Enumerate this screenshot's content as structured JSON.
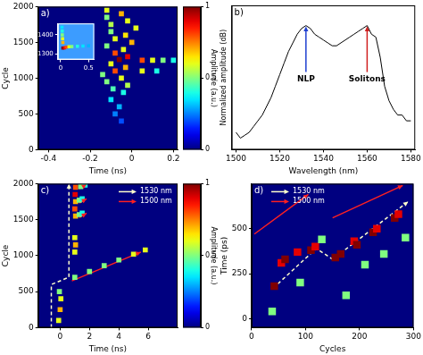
{
  "chart_data": [
    {
      "type": "heatmap",
      "panel": "a)",
      "x_label": "Time (ns)",
      "y_label": "Cycle",
      "xlim": [
        -0.45,
        0.22
      ],
      "xticks": [
        -0.4,
        -0.2,
        0,
        0.2
      ],
      "ylim": [
        0,
        2000
      ],
      "yticks": [
        0,
        500,
        1000,
        1500,
        2000
      ],
      "zlim": [
        0,
        1
      ],
      "colorbar": {
        "label": "Amplitude (a.u.)",
        "ticks": [
          0,
          0.5,
          1
        ]
      },
      "cells": [
        [
          -0.12,
          1950,
          0.6
        ],
        [
          -0.05,
          1900,
          0.7
        ],
        [
          -0.12,
          1850,
          0.5
        ],
        [
          -0.02,
          1800,
          0.6
        ],
        [
          -0.1,
          1750,
          0.55
        ],
        [
          0.02,
          1700,
          0.6
        ],
        [
          -0.1,
          1650,
          0.5
        ],
        [
          -0.03,
          1600,
          0.65
        ],
        [
          -0.08,
          1550,
          0.6
        ],
        [
          0.0,
          1500,
          0.7
        ],
        [
          -0.12,
          1450,
          0.5
        ],
        [
          -0.04,
          1400,
          0.6
        ],
        [
          -0.08,
          1350,
          0.8
        ],
        [
          -0.02,
          1300,
          0.9
        ],
        [
          -0.06,
          1260,
          1.0
        ],
        [
          0.05,
          1250,
          0.8
        ],
        [
          0.1,
          1250,
          0.6
        ],
        [
          0.15,
          1250,
          0.5
        ],
        [
          0.2,
          1250,
          0.4
        ],
        [
          -0.1,
          1200,
          0.6
        ],
        [
          -0.03,
          1150,
          0.7
        ],
        [
          -0.08,
          1100,
          0.8
        ],
        [
          0.05,
          1100,
          0.6
        ],
        [
          0.12,
          1100,
          0.4
        ],
        [
          -0.14,
          1050,
          0.5
        ],
        [
          -0.05,
          1000,
          0.6
        ],
        [
          -0.12,
          950,
          0.5
        ],
        [
          -0.02,
          900,
          0.55
        ],
        [
          -0.09,
          850,
          0.45
        ],
        [
          -0.04,
          800,
          0.4
        ],
        [
          -0.1,
          700,
          0.35
        ],
        [
          -0.06,
          600,
          0.3
        ],
        [
          -0.08,
          500,
          0.25
        ],
        [
          -0.05,
          400,
          0.2
        ]
      ],
      "inset": {
        "xlim": [
          -0.05,
          0.6
        ],
        "xticks": [
          0,
          0.5
        ],
        "ylim": [
          1270,
          1460
        ],
        "yticks": [
          1300,
          1400
        ],
        "cells": [
          [
            0.04,
            1330,
            1.0
          ],
          [
            0.07,
            1332,
            0.9
          ],
          [
            0.1,
            1335,
            0.8
          ],
          [
            0.15,
            1337,
            0.6
          ],
          [
            0.2,
            1338,
            0.5
          ],
          [
            0.3,
            1340,
            0.4
          ],
          [
            0.4,
            1341,
            0.35
          ],
          [
            0.5,
            1342,
            0.3
          ],
          [
            0.04,
            1360,
            0.7
          ],
          [
            0.035,
            1380,
            0.6
          ],
          [
            0.03,
            1400,
            0.5
          ],
          [
            0.028,
            1420,
            0.4
          ],
          [
            0.025,
            1440,
            0.35
          ]
        ]
      }
    },
    {
      "type": "line",
      "panel": "b)",
      "x_label": "Wavelength (nm)",
      "y_label": "Normalized amplitude (dB)",
      "xlim": [
        1498,
        1582
      ],
      "xticks": [
        1500,
        1520,
        1540,
        1560,
        1580
      ],
      "ylim": [
        -50,
        0
      ],
      "tick_labels": "x",
      "color": "#000000",
      "x": [
        1500,
        1502,
        1504,
        1506,
        1508,
        1510,
        1512,
        1514,
        1516,
        1518,
        1520,
        1522,
        1524,
        1526,
        1528,
        1530,
        1532,
        1534,
        1536,
        1538,
        1540,
        1542,
        1544,
        1546,
        1548,
        1550,
        1552,
        1554,
        1556,
        1558,
        1560,
        1562,
        1564,
        1566,
        1568,
        1570,
        1572,
        1574,
        1576,
        1578,
        1580
      ],
      "values": [
        -44,
        -46,
        -45,
        -44,
        -42,
        -40,
        -38,
        -35,
        -32,
        -28,
        -24,
        -20,
        -16,
        -13,
        -10,
        -8,
        -7,
        -8,
        -10,
        -11,
        -12,
        -13,
        -14,
        -14,
        -13,
        -12,
        -11,
        -10,
        -9,
        -8,
        -7,
        -10,
        -11,
        -18,
        -28,
        -33,
        -36,
        -38,
        -38,
        -40,
        -40
      ],
      "annotations": [
        {
          "text": "NLP",
          "x": 1532,
          "y": -7,
          "color": "#1f3fd0"
        },
        {
          "text": "Solitons",
          "x": 1560,
          "y": -7,
          "color": "#d01f1f"
        }
      ]
    },
    {
      "type": "heatmap",
      "panel": "c)",
      "x_label": "Time (ns)",
      "y_label": "Cycle",
      "xlim": [
        -1.5,
        8
      ],
      "xticks": [
        0,
        2,
        4,
        6
      ],
      "ylim": [
        0,
        2000
      ],
      "yticks": [
        0,
        500,
        1000,
        1500,
        2000
      ],
      "zlim": [
        0,
        1
      ],
      "colorbar": {
        "label": "Amplitude (a.u.)",
        "ticks": [
          0,
          0.5,
          1
        ]
      },
      "legend": "upper right",
      "cells": [
        [
          -0.1,
          100,
          0.6
        ],
        [
          0,
          250,
          0.7
        ],
        [
          0.05,
          400,
          0.6
        ],
        [
          -0.05,
          500,
          0.5
        ],
        [
          1,
          1050,
          0.6
        ],
        [
          1.05,
          1150,
          0.7
        ],
        [
          1,
          1250,
          0.6
        ],
        [
          1.05,
          1550,
          0.7
        ],
        [
          1,
          1650,
          0.8
        ],
        [
          1.05,
          1750,
          0.7
        ],
        [
          1.02,
          1850,
          0.9
        ],
        [
          1.05,
          1950,
          0.8
        ],
        [
          1.3,
          1570,
          0.5
        ],
        [
          1.5,
          1590,
          0.4
        ],
        [
          1.3,
          1770,
          0.5
        ],
        [
          1.5,
          1790,
          0.4
        ],
        [
          1.4,
          1960,
          0.5
        ],
        [
          1.7,
          1980,
          0.4
        ],
        [
          1,
          700,
          0.5
        ],
        [
          2,
          780,
          0.5
        ],
        [
          3,
          860,
          0.5
        ],
        [
          4,
          940,
          0.5
        ],
        [
          5,
          1020,
          0.6
        ],
        [
          5.8,
          1080,
          0.6
        ]
      ],
      "series": [
        {
          "name": "1530 nm",
          "color": "#ffffcc",
          "line_style": "dashed",
          "x": [
            -0.6,
            -0.6,
            0.6,
            0.6
          ],
          "y": [
            0,
            600,
            700,
            2000
          ]
        },
        {
          "name": "1500 nm",
          "color": "#ff2020",
          "line_style": "solid",
          "x": [
            0.8,
            5.5,
            null,
            1.3,
            1.8,
            null,
            1.3,
            1.8,
            null,
            1.3,
            1.8
          ],
          "y": [
            650,
            1050,
            null,
            1530,
            1590,
            null,
            1730,
            1790,
            null,
            1930,
            1990
          ]
        }
      ]
    },
    {
      "type": "heatmap",
      "panel": "d)",
      "x_label": "Cycles",
      "y_label": "Time (ps)",
      "xlim": [
        0,
        300
      ],
      "xticks": [
        0,
        100,
        200,
        300
      ],
      "ylim": [
        -50,
        750
      ],
      "yticks": [
        0,
        250,
        500
      ],
      "zlim": [
        0,
        1
      ],
      "legend": "upper left",
      "cells": [
        [
          38,
          40,
          0.5
        ],
        [
          42,
          180,
          1
        ],
        [
          55,
          310,
          0.9
        ],
        [
          62,
          330,
          1
        ],
        [
          85,
          370,
          0.9
        ],
        [
          90,
          200,
          0.5
        ],
        [
          110,
          380,
          1
        ],
        [
          118,
          400,
          0.9
        ],
        [
          130,
          440,
          0.5
        ],
        [
          155,
          340,
          1
        ],
        [
          165,
          360,
          1
        ],
        [
          175,
          130,
          0.5
        ],
        [
          190,
          430,
          0.9
        ],
        [
          195,
          410,
          1
        ],
        [
          210,
          300,
          0.5
        ],
        [
          225,
          480,
          1
        ],
        [
          232,
          500,
          0.9
        ],
        [
          245,
          360,
          0.5
        ],
        [
          265,
          560,
          1
        ],
        [
          272,
          580,
          0.9
        ],
        [
          285,
          450,
          0.5
        ]
      ],
      "series": [
        {
          "name": "1530 nm",
          "color": "#ffffcc",
          "line_style": "dashed",
          "x": [
            40,
            120,
            150,
            290
          ],
          "y": [
            170,
            390,
            330,
            650
          ]
        },
        {
          "name": "1500 nm",
          "color": "#ff2020",
          "line_style": "solid",
          "x": [
            5,
            105,
            null,
            150,
            280
          ],
          "y": [
            470,
            690,
            null,
            560,
            740
          ]
        }
      ]
    }
  ]
}
